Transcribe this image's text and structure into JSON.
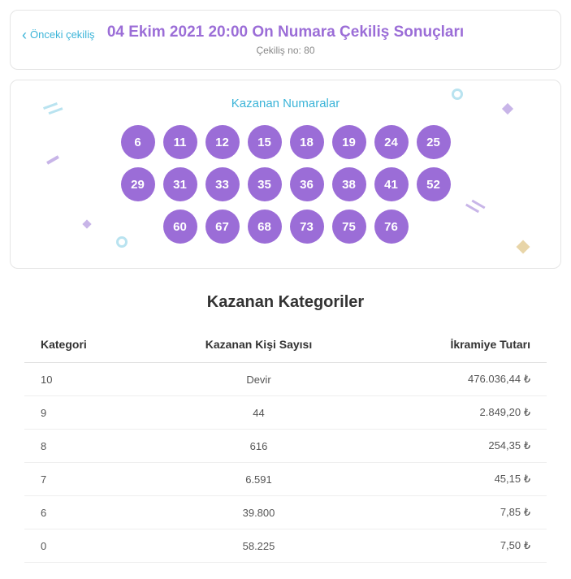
{
  "header": {
    "prev_label": "Önceki çekiliş",
    "title": "04 Ekim 2021 20:00 On Numara Çekiliş Sonuçları",
    "subtitle": "Çekiliş no: 80"
  },
  "numbers": {
    "title": "Kazanan Numaralar",
    "rows": [
      [
        "6",
        "11",
        "12",
        "15",
        "18",
        "19",
        "24",
        "25"
      ],
      [
        "29",
        "31",
        "33",
        "35",
        "36",
        "38",
        "41",
        "52"
      ],
      [
        "60",
        "67",
        "68",
        "73",
        "75",
        "76"
      ]
    ],
    "ball_bg": "#9b6dd7",
    "ball_fg": "#ffffff"
  },
  "categories": {
    "title": "Kazanan Kategoriler",
    "columns": [
      "Kategori",
      "Kazanan Kişi Sayısı",
      "İkramiye Tutarı"
    ],
    "rows": [
      [
        "10",
        "Devir",
        "476.036,44 ₺"
      ],
      [
        "9",
        "44",
        "2.849,20 ₺"
      ],
      [
        "8",
        "616",
        "254,35 ₺"
      ],
      [
        "7",
        "6.591",
        "45,15 ₺"
      ],
      [
        "6",
        "39.800",
        "7,85 ₺"
      ],
      [
        "0",
        "58.225",
        "7,50 ₺"
      ]
    ]
  },
  "colors": {
    "accent_purple": "#9b6dd7",
    "accent_cyan": "#3bb4d8",
    "border": "#e5e5e5",
    "text_muted": "#888"
  }
}
